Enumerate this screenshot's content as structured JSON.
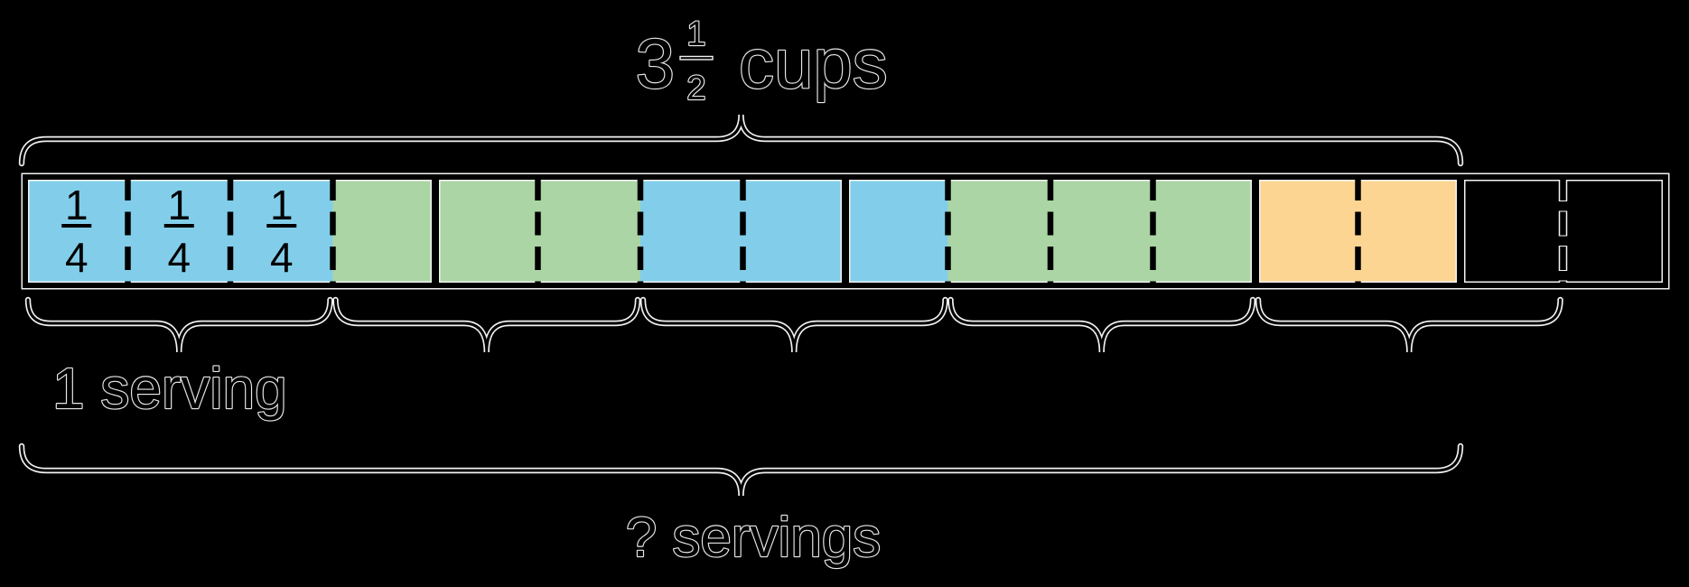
{
  "page": {
    "background": "#000000"
  },
  "diagram": {
    "type": "fraction-tape-diagram",
    "top_label": {
      "whole": "3",
      "numerator": "1",
      "denominator": "2",
      "unit": "cups",
      "reading": "3 1/2 cups"
    },
    "cell_fraction": {
      "numerator": "1",
      "denominator": "4",
      "reading": "1/4"
    },
    "serving_label": "1 serving",
    "question_label": "? servings",
    "colors": {
      "blue": "#82CEEA",
      "green": "#ABD5A4",
      "orange": "#FDD593",
      "empty": "none",
      "line": "#000000",
      "halo": "#f2f2f2"
    },
    "cells": [
      {
        "color": "blue",
        "fraction": true
      },
      {
        "color": "blue",
        "fraction": true
      },
      {
        "color": "blue",
        "fraction": true
      },
      {
        "color": "green",
        "fraction": false
      },
      {
        "color": "green",
        "fraction": false
      },
      {
        "color": "green",
        "fraction": false
      },
      {
        "color": "blue",
        "fraction": false
      },
      {
        "color": "blue",
        "fraction": false
      },
      {
        "color": "blue",
        "fraction": false
      },
      {
        "color": "green",
        "fraction": false
      },
      {
        "color": "green",
        "fraction": false
      },
      {
        "color": "green",
        "fraction": false
      },
      {
        "color": "orange",
        "fraction": false
      },
      {
        "color": "orange",
        "fraction": false
      },
      {
        "color": "empty",
        "fraction": false
      },
      {
        "color": "empty",
        "fraction": false
      }
    ],
    "total_cells": 16,
    "shaded_cells": 14,
    "solid_dividers_after_cell": [
      4,
      8,
      12,
      14
    ],
    "dashed_dividers_after_cell": [
      1,
      2,
      3,
      5,
      6,
      7,
      9,
      10,
      11,
      13,
      15
    ],
    "halo_dashed_dividers_after_cell": [
      15
    ],
    "top_brace_span_cells": [
      0,
      14
    ],
    "question_brace_span_cells": [
      0,
      14
    ],
    "serving_brace_spans_cells": [
      [
        0,
        3
      ],
      [
        3,
        6
      ],
      [
        6,
        9
      ],
      [
        9,
        12
      ],
      [
        12,
        15
      ]
    ]
  }
}
